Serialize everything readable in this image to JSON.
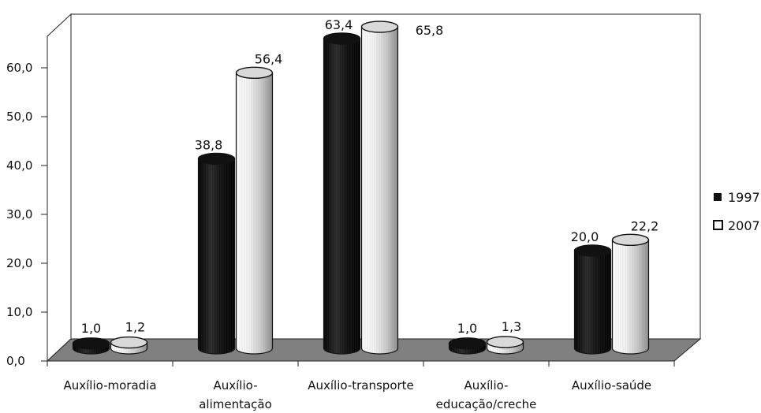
{
  "chart_data": {
    "type": "bar",
    "title": "",
    "xlabel": "",
    "ylabel": "",
    "ylim": [
      0,
      70
    ],
    "yticks": [
      "0,0",
      "10,0",
      "20,0",
      "30,0",
      "40,0",
      "50,0",
      "60,0"
    ],
    "categories": [
      [
        "Auxílio-moradia"
      ],
      [
        "Auxílio-",
        "alimentação"
      ],
      [
        "Auxílio-transporte"
      ],
      [
        "Auxílio-",
        "educação/creche"
      ],
      [
        "Auxílio-saúde"
      ]
    ],
    "series": [
      {
        "name": "1997",
        "values": [
          1.0,
          38.8,
          63.4,
          1.0,
          20.0
        ],
        "labels": [
          "1,0",
          "38,8",
          "63,4",
          "1,0",
          "20,0"
        ],
        "color": "#111111"
      },
      {
        "name": "2007",
        "values": [
          1.2,
          56.4,
          65.8,
          1.3,
          22.2
        ],
        "labels": [
          "1,2",
          "56,4",
          "65,8",
          "1,3",
          "22,2"
        ],
        "color": "#d9d9d9"
      }
    ],
    "legend_position": "right",
    "grid": false,
    "floor_color": "#808080"
  }
}
